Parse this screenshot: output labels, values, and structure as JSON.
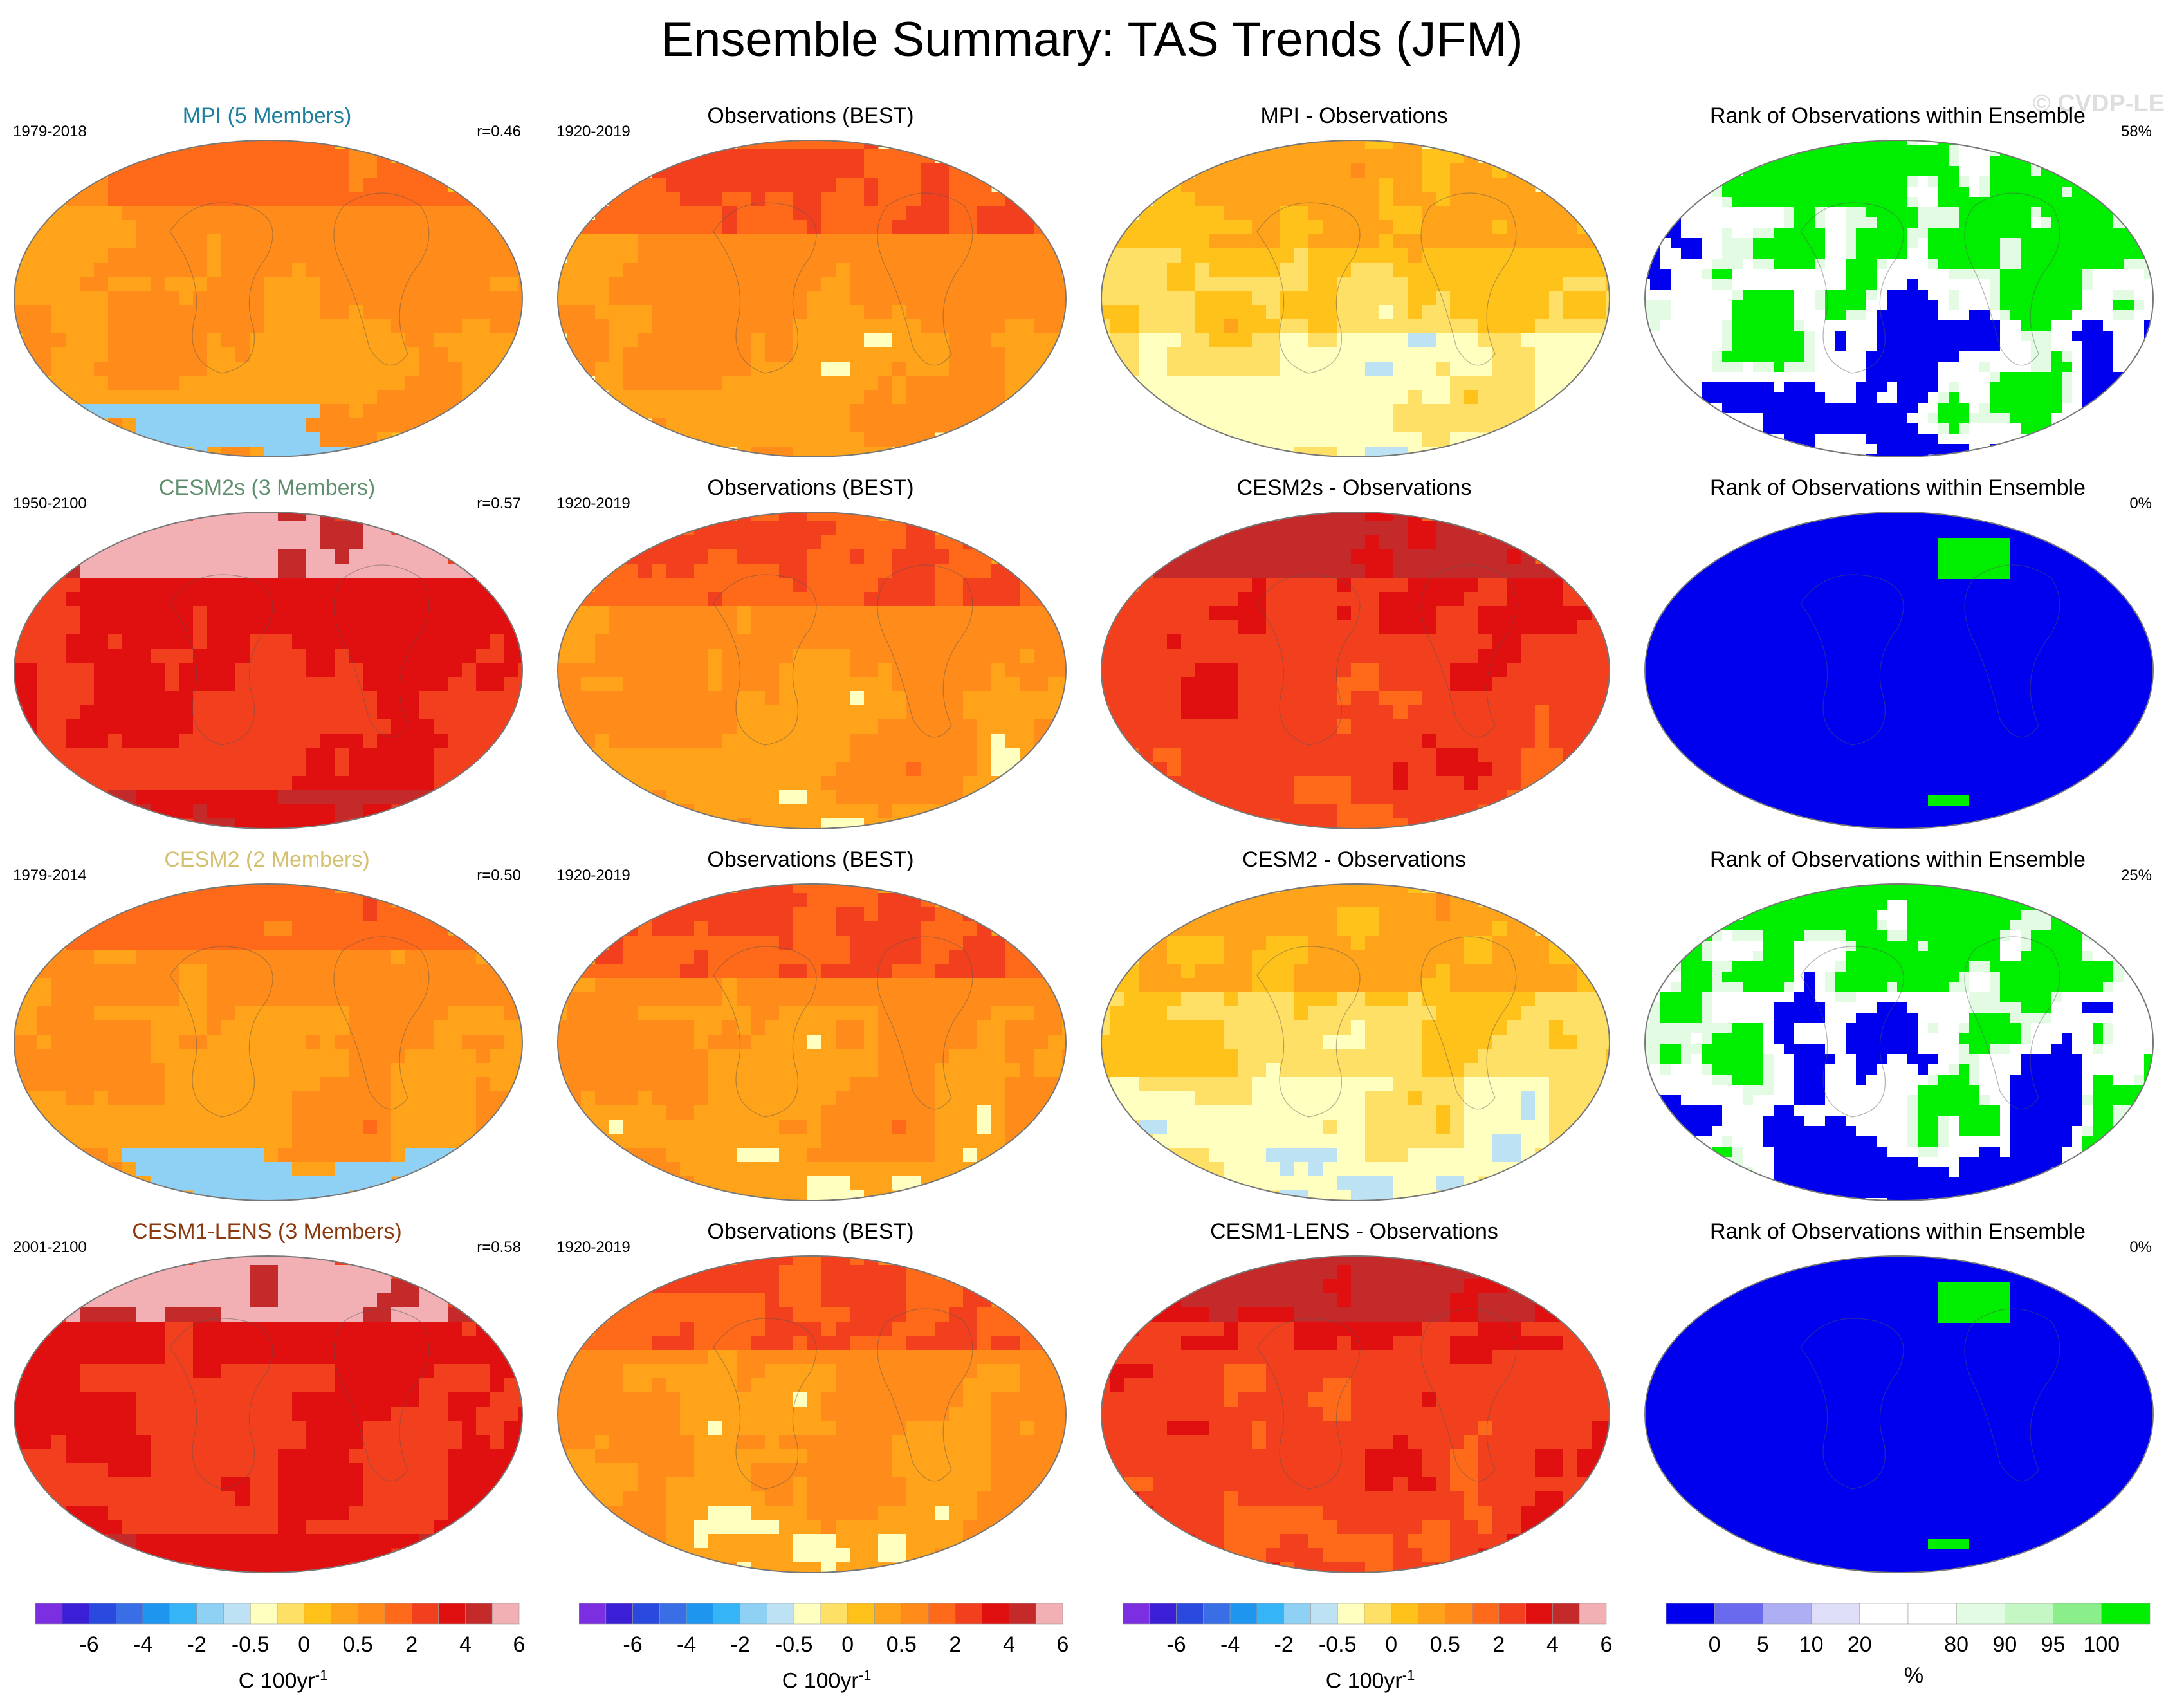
{
  "title": "Ensemble Summary: TAS Trends (JFM)",
  "watermark": "© CVDP-LE",
  "colors": {
    "trend_scale": [
      "#7b2fe0",
      "#3b1fd6",
      "#2a49de",
      "#3a6ee6",
      "#1e96f0",
      "#35b4f7",
      "#8fd0f5",
      "#bde2f4",
      "#ffffc0",
      "#ffe066",
      "#ffc21a",
      "#ffa31a",
      "#ff8c1a",
      "#ff6a1a",
      "#f2401f",
      "#e01010",
      "#c52a2a",
      "#f2b0b5"
    ],
    "rank_scale": [
      "#0000ee",
      "#6a6aee",
      "#aeaef4",
      "#dedef8",
      "#ffffff",
      "#ffffff",
      "#e2fbe2",
      "#c4f7c4",
      "#8aef8a",
      "#00ee00"
    ]
  },
  "chart_data": [
    {
      "type": "heatmap",
      "row": 1,
      "col": 1,
      "title": "MPI (5 Members)",
      "title_color": "#1f7f9f",
      "period": "1979-2018",
      "stat": "r=0.46",
      "variant": "mpi"
    },
    {
      "type": "heatmap",
      "row": 1,
      "col": 2,
      "title": "Observations (BEST)",
      "title_color": "#000000",
      "period": "1920-2019",
      "stat": "",
      "variant": "obs"
    },
    {
      "type": "heatmap",
      "row": 1,
      "col": 3,
      "title": "MPI - Observations",
      "title_color": "#000000",
      "period": "",
      "stat": "",
      "variant": "diff_mpi"
    },
    {
      "type": "heatmap",
      "row": 1,
      "col": 4,
      "title": "Rank of Observations within Ensemble",
      "title_color": "#000000",
      "period": "",
      "stat": "58%",
      "variant": "rank_mixed"
    },
    {
      "type": "heatmap",
      "row": 2,
      "col": 1,
      "title": "CESM2s (3 Members)",
      "title_color": "#5f8f6f",
      "period": "1950-2100",
      "stat": "r=0.57",
      "variant": "warm"
    },
    {
      "type": "heatmap",
      "row": 2,
      "col": 2,
      "title": "Observations (BEST)",
      "title_color": "#000000",
      "period": "1920-2019",
      "stat": "",
      "variant": "obs"
    },
    {
      "type": "heatmap",
      "row": 2,
      "col": 3,
      "title": "CESM2s - Observations",
      "title_color": "#000000",
      "period": "",
      "stat": "",
      "variant": "diff_warm"
    },
    {
      "type": "heatmap",
      "row": 2,
      "col": 4,
      "title": "Rank of Observations within Ensemble",
      "title_color": "#000000",
      "period": "",
      "stat": "0%",
      "variant": "rank_low"
    },
    {
      "type": "heatmap",
      "row": 3,
      "col": 1,
      "title": "CESM2 (2 Members)",
      "title_color": "#d4c070",
      "period": "1979-2014",
      "stat": "r=0.50",
      "variant": "mpi"
    },
    {
      "type": "heatmap",
      "row": 3,
      "col": 2,
      "title": "Observations (BEST)",
      "title_color": "#000000",
      "period": "1920-2019",
      "stat": "",
      "variant": "obs"
    },
    {
      "type": "heatmap",
      "row": 3,
      "col": 3,
      "title": "CESM2 - Observations",
      "title_color": "#000000",
      "period": "",
      "stat": "",
      "variant": "diff_mpi"
    },
    {
      "type": "heatmap",
      "row": 3,
      "col": 4,
      "title": "Rank of Observations within Ensemble",
      "title_color": "#000000",
      "period": "",
      "stat": "25%",
      "variant": "rank_mixed"
    },
    {
      "type": "heatmap",
      "row": 4,
      "col": 1,
      "title": "CESM1-LENS (3 Members)",
      "title_color": "#8b3a10",
      "period": "2001-2100",
      "stat": "r=0.58",
      "variant": "warm"
    },
    {
      "type": "heatmap",
      "row": 4,
      "col": 2,
      "title": "Observations (BEST)",
      "title_color": "#000000",
      "period": "1920-2019",
      "stat": "",
      "variant": "obs"
    },
    {
      "type": "heatmap",
      "row": 4,
      "col": 3,
      "title": "CESM1-LENS - Observations",
      "title_color": "#000000",
      "period": "",
      "stat": "",
      "variant": "diff_warm"
    },
    {
      "type": "heatmap",
      "row": 4,
      "col": 4,
      "title": "Rank of Observations within Ensemble",
      "title_color": "#000000",
      "period": "",
      "stat": "0%",
      "variant": "rank_low"
    }
  ],
  "colorbars": [
    {
      "kind": "trend",
      "ticks": [
        {
          "label": "-6",
          "after_box": 2
        },
        {
          "label": "-4",
          "after_box": 4
        },
        {
          "label": "-2",
          "after_box": 6
        },
        {
          "label": "-0.5",
          "after_box": 8
        },
        {
          "label": "0",
          "after_box": 10
        },
        {
          "label": "0.5",
          "after_box": 12
        },
        {
          "label": "2",
          "after_box": 14
        },
        {
          "label": "4",
          "after_box": 16
        },
        {
          "label": "6",
          "after_box": 18
        }
      ],
      "unit": "C 100yr",
      "unit_exp": "-1"
    },
    {
      "kind": "trend",
      "ticks": [
        {
          "label": "-6",
          "after_box": 2
        },
        {
          "label": "-4",
          "after_box": 4
        },
        {
          "label": "-2",
          "after_box": 6
        },
        {
          "label": "-0.5",
          "after_box": 8
        },
        {
          "label": "0",
          "after_box": 10
        },
        {
          "label": "0.5",
          "after_box": 12
        },
        {
          "label": "2",
          "after_box": 14
        },
        {
          "label": "4",
          "after_box": 16
        },
        {
          "label": "6",
          "after_box": 18
        }
      ],
      "unit": "C 100yr",
      "unit_exp": "-1"
    },
    {
      "kind": "trend",
      "ticks": [
        {
          "label": "-6",
          "after_box": 2
        },
        {
          "label": "-4",
          "after_box": 4
        },
        {
          "label": "-2",
          "after_box": 6
        },
        {
          "label": "-0.5",
          "after_box": 8
        },
        {
          "label": "0",
          "after_box": 10
        },
        {
          "label": "0.5",
          "after_box": 12
        },
        {
          "label": "2",
          "after_box": 14
        },
        {
          "label": "4",
          "after_box": 16
        },
        {
          "label": "6",
          "after_box": 18
        }
      ],
      "unit": "C 100yr",
      "unit_exp": "-1"
    },
    {
      "kind": "rank",
      "ticks": [
        {
          "label": "0",
          "after_box": 1
        },
        {
          "label": "5",
          "after_box": 2
        },
        {
          "label": "10",
          "after_box": 3
        },
        {
          "label": "20",
          "after_box": 4
        },
        {
          "label": "80",
          "after_box": 6
        },
        {
          "label": "90",
          "after_box": 7
        },
        {
          "label": "95",
          "after_box": 8
        },
        {
          "label": "100",
          "after_box": 9
        }
      ],
      "unit": "%",
      "unit_exp": ""
    }
  ]
}
